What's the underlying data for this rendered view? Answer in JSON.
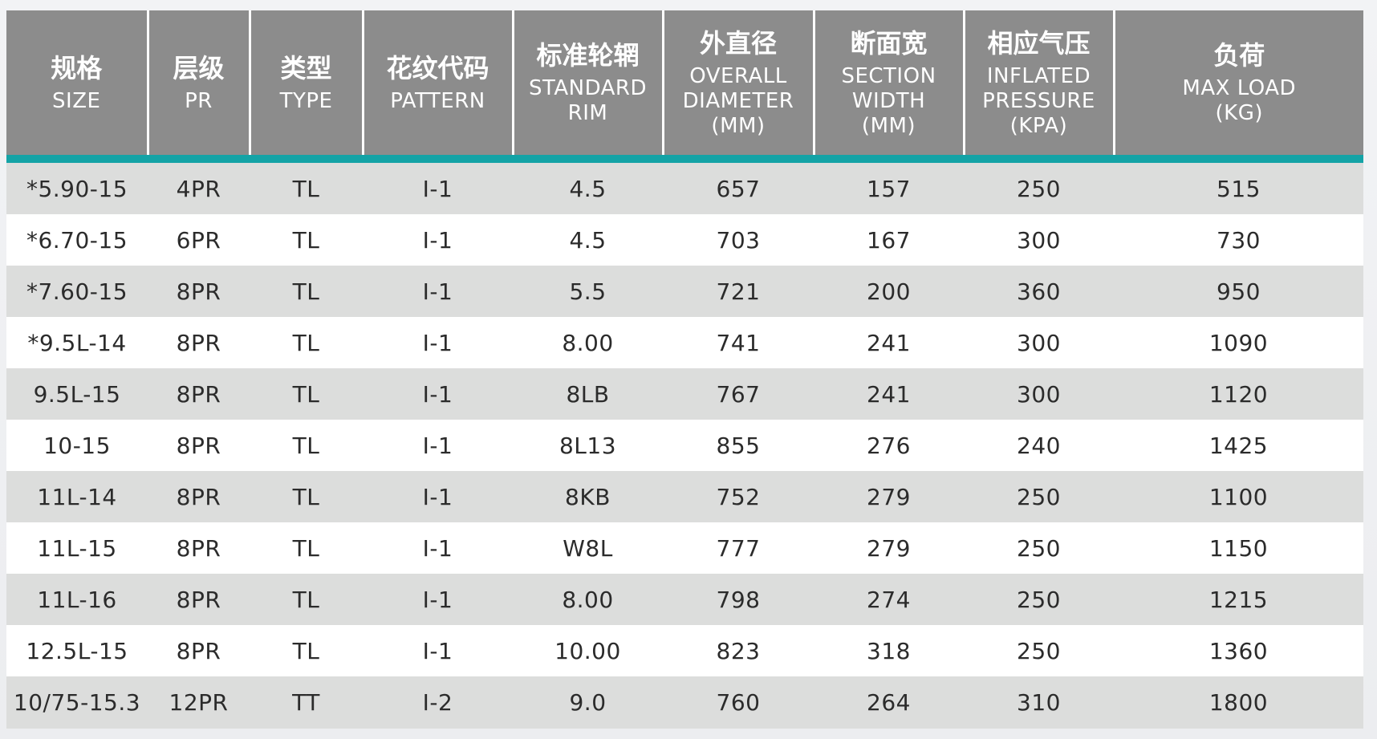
{
  "table": {
    "header_color": "#8c8c8c",
    "accent_color": "#14a3a6",
    "columns": [
      {
        "zh": "规格",
        "en": "SIZE"
      },
      {
        "zh": "层级",
        "en": "PR"
      },
      {
        "zh": "类型",
        "en": "TYPE"
      },
      {
        "zh": "花纹代码",
        "en": "PATTERN"
      },
      {
        "zh": "标准轮辋",
        "en": "STANDARD\nRIM"
      },
      {
        "zh": "外直径",
        "en": "OVERALL\nDIAMETER\n(MM)"
      },
      {
        "zh": "断面宽",
        "en": "SECTION\nWIDTH\n(MM)"
      },
      {
        "zh": "相应气压",
        "en": "INFLATED\nPRESSURE\n(KPA)"
      },
      {
        "zh": "负荷",
        "en": "MAX LOAD\n(KG)"
      }
    ],
    "rows": [
      [
        "*5.90-15",
        "4PR",
        "TL",
        "I-1",
        "4.5",
        "657",
        "157",
        "250",
        "515"
      ],
      [
        "*6.70-15",
        "6PR",
        "TL",
        "I-1",
        "4.5",
        "703",
        "167",
        "300",
        "730"
      ],
      [
        "*7.60-15",
        "8PR",
        "TL",
        "I-1",
        "5.5",
        "721",
        "200",
        "360",
        "950"
      ],
      [
        "*9.5L-14",
        "8PR",
        "TL",
        "I-1",
        "8.00",
        "741",
        "241",
        "300",
        "1090"
      ],
      [
        "9.5L-15",
        "8PR",
        "TL",
        "I-1",
        "8LB",
        "767",
        "241",
        "300",
        "1120"
      ],
      [
        "10-15",
        "8PR",
        "TL",
        "I-1",
        "8L13",
        "855",
        "276",
        "240",
        "1425"
      ],
      [
        "11L-14",
        "8PR",
        "TL",
        "I-1",
        "8KB",
        "752",
        "279",
        "250",
        "1100"
      ],
      [
        "11L-15",
        "8PR",
        "TL",
        "I-1",
        "W8L",
        "777",
        "279",
        "250",
        "1150"
      ],
      [
        "11L-16",
        "8PR",
        "TL",
        "I-1",
        "8.00",
        "798",
        "274",
        "250",
        "1215"
      ],
      [
        "12.5L-15",
        "8PR",
        "TL",
        "I-1",
        "10.00",
        "823",
        "318",
        "250",
        "1360"
      ],
      [
        "10/75-15.3",
        "12PR",
        "TT",
        "I-2",
        "9.0",
        "760",
        "264",
        "310",
        "1800"
      ]
    ]
  }
}
